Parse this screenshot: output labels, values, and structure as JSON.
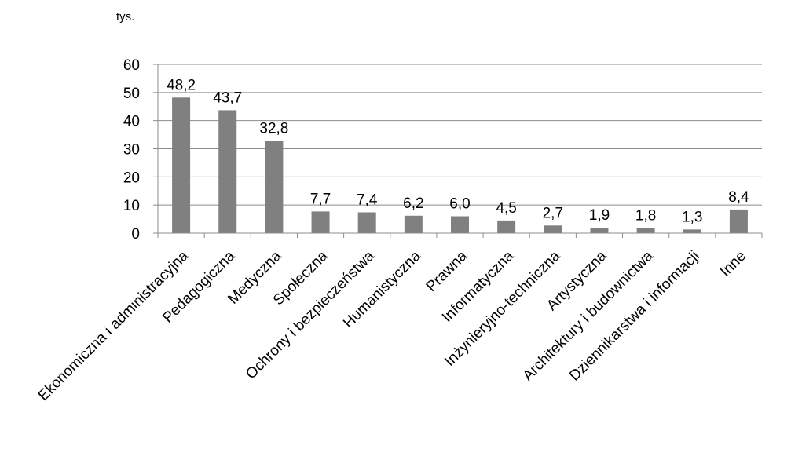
{
  "chart_data": {
    "type": "bar",
    "unit_label": "tys.",
    "categories": [
      "Ekonomiczna i administracyjna",
      "Pedagogiczna",
      "Medyczna",
      "Społeczna",
      "Ochrony i bezpieczeństwa",
      "Humanistyczna",
      "Prawna",
      "Informatyczna",
      "Inżynieryjno-techniczna",
      "Artystyczna",
      "Architektury i budownictwa",
      "Dziennikarstwa i informacji",
      "Inne"
    ],
    "values": [
      48.2,
      43.7,
      32.8,
      7.7,
      7.4,
      6.2,
      6.0,
      4.5,
      2.7,
      1.9,
      1.8,
      1.3,
      8.4
    ],
    "value_labels": [
      "48,2",
      "43,7",
      "32,8",
      "7,7",
      "7,4",
      "6,2",
      "6,0",
      "4,5",
      "2,7",
      "1,9",
      "1,8",
      "1,3",
      "8,4"
    ],
    "y_ticks": [
      0,
      10,
      20,
      30,
      40,
      50,
      60
    ],
    "ylim": [
      0,
      60
    ],
    "grid": true,
    "legend": "none",
    "bar_color": "#808080"
  }
}
